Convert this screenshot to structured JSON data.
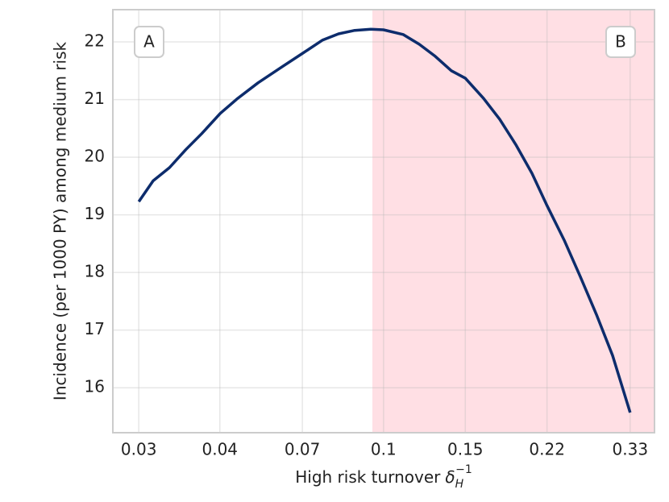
{
  "chart_data": {
    "type": "line",
    "x_label": "High risk turnover",
    "x_label_math": {
      "base": "δ",
      "sub": "H",
      "sup": "−1"
    },
    "y_label": "Incidence (per 1000 PY) among medium risk",
    "x_log": true,
    "xlim": [
      0.0267,
      0.375
    ],
    "xticks": [
      {
        "value": 0.0303,
        "label": "0.03"
      },
      {
        "value": 0.045,
        "label": "0.04"
      },
      {
        "value": 0.0673,
        "label": "0.07"
      },
      {
        "value": 0.1,
        "label": "0.1"
      },
      {
        "value": 0.149,
        "label": "0.15"
      },
      {
        "value": 0.222,
        "label": "0.22"
      },
      {
        "value": 0.333,
        "label": "0.33"
      }
    ],
    "ylim": [
      15.22,
      22.56
    ],
    "yticks": [
      16,
      17,
      18,
      19,
      20,
      21,
      22
    ],
    "grid": true,
    "shade_from": 0.0947,
    "shade_color": "#ffdfe4",
    "annotations": [
      "A",
      "B"
    ],
    "series": [
      {
        "color": "#0d2c6c",
        "x": [
          0.0303,
          0.0325,
          0.0352,
          0.0381,
          0.0412,
          0.0451,
          0.0491,
          0.0542,
          0.061,
          0.0673,
          0.0742,
          0.0803,
          0.0869,
          0.094,
          0.1,
          0.11,
          0.119,
          0.1287,
          0.1392,
          0.149,
          0.1629,
          0.1762,
          0.1906,
          0.2063,
          0.222,
          0.2414,
          0.2611,
          0.2825,
          0.3056,
          0.333
        ],
        "values": [
          19.23,
          19.59,
          19.82,
          20.13,
          20.41,
          20.76,
          21.02,
          21.29,
          21.57,
          21.8,
          22.03,
          22.14,
          22.2,
          22.22,
          22.21,
          22.13,
          21.96,
          21.75,
          21.5,
          21.37,
          21.02,
          20.66,
          20.22,
          19.72,
          19.16,
          18.56,
          17.93,
          17.27,
          16.56,
          15.57
        ]
      }
    ]
  }
}
